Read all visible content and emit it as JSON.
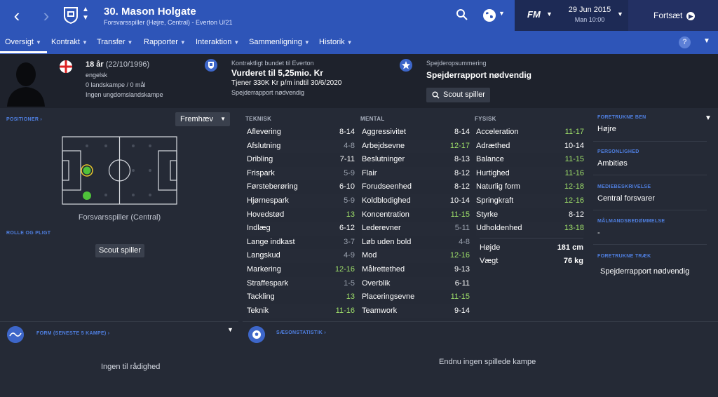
{
  "header": {
    "title": "30. Mason Holgate",
    "subtitle": "Forsvarsspiller (Højre, Central) - Everton U/21",
    "fm_logo": "FM",
    "date": "29 Jun 2015",
    "time": "Man 10:00",
    "continue_label": "Fortsæt"
  },
  "tabs": [
    {
      "label": "Oversigt"
    },
    {
      "label": "Kontrakt"
    },
    {
      "label": "Transfer"
    },
    {
      "label": "Rapporter"
    },
    {
      "label": "Interaktion"
    },
    {
      "label": "Sammenligning"
    },
    {
      "label": "Historik"
    }
  ],
  "help_label": "?",
  "player": {
    "age": "18 år",
    "dob": "(22/10/1996)",
    "nationality": "engelsk",
    "caps": "0 landskampe / 0 mål",
    "youth_caps": "Ingen ungdomslandskampe",
    "contract_label": "Kontraktligt bundet til Everton",
    "value": "Vurderet til 5,25mio. Kr",
    "wage": "Tjener 330K Kr p/m indtil 30/6/2020",
    "contract_note": "Spejderrapport nødvendig",
    "scout_label": "Spejderopsummering",
    "scout_title": "Spejderrapport nødvendig",
    "scout_button": "Scout spiller"
  },
  "positions": {
    "label": "POSITIONER",
    "dropdown": "Fremhæv",
    "position_name": "Forsvarsspiller (Central)",
    "role_label": "ROLLE OG PLIGT",
    "scout_button": "Scout spiller"
  },
  "attributes": {
    "technical_label": "TEKNISK",
    "mental_label": "MENTAL",
    "physical_label": "FYSISK",
    "technical": [
      {
        "name": "Aflevering",
        "value": "8-14",
        "tone": "white"
      },
      {
        "name": "Afslutning",
        "value": "4-8",
        "tone": "grey"
      },
      {
        "name": "Dribling",
        "value": "7-11",
        "tone": "white"
      },
      {
        "name": "Frispark",
        "value": "5-9",
        "tone": "grey"
      },
      {
        "name": "Førsteberøring",
        "value": "6-10",
        "tone": "white"
      },
      {
        "name": "Hjørnespark",
        "value": "5-9",
        "tone": "grey"
      },
      {
        "name": "Hovedstød",
        "value": "13",
        "tone": "green"
      },
      {
        "name": "Indlæg",
        "value": "6-12",
        "tone": "white"
      },
      {
        "name": "Lange indkast",
        "value": "3-7",
        "tone": "grey"
      },
      {
        "name": "Langskud",
        "value": "4-9",
        "tone": "grey"
      },
      {
        "name": "Markering",
        "value": "12-16",
        "tone": "green"
      },
      {
        "name": "Straffespark",
        "value": "1-5",
        "tone": "grey"
      },
      {
        "name": "Tackling",
        "value": "13",
        "tone": "green"
      },
      {
        "name": "Teknik",
        "value": "11-16",
        "tone": "green"
      }
    ],
    "mental": [
      {
        "name": "Aggressivitet",
        "value": "8-14",
        "tone": "white"
      },
      {
        "name": "Arbejdsevne",
        "value": "12-17",
        "tone": "green"
      },
      {
        "name": "Beslutninger",
        "value": "8-13",
        "tone": "white"
      },
      {
        "name": "Flair",
        "value": "8-12",
        "tone": "white"
      },
      {
        "name": "Forudseenhed",
        "value": "8-12",
        "tone": "white"
      },
      {
        "name": "Koldblodighed",
        "value": "10-14",
        "tone": "white"
      },
      {
        "name": "Koncentration",
        "value": "11-15",
        "tone": "green"
      },
      {
        "name": "Lederevner",
        "value": "5-11",
        "tone": "grey"
      },
      {
        "name": "Løb uden bold",
        "value": "4-8",
        "tone": "grey"
      },
      {
        "name": "Mod",
        "value": "12-16",
        "tone": "green"
      },
      {
        "name": "Målrettethed",
        "value": "9-13",
        "tone": "white"
      },
      {
        "name": "Overblik",
        "value": "6-11",
        "tone": "white"
      },
      {
        "name": "Placeringsevne",
        "value": "11-15",
        "tone": "green"
      },
      {
        "name": "Teamwork",
        "value": "9-14",
        "tone": "white"
      }
    ],
    "physical": [
      {
        "name": "Acceleration",
        "value": "11-17",
        "tone": "green"
      },
      {
        "name": "Adræthed",
        "value": "10-14",
        "tone": "white"
      },
      {
        "name": "Balance",
        "value": "11-15",
        "tone": "green"
      },
      {
        "name": "Hurtighed",
        "value": "11-16",
        "tone": "green"
      },
      {
        "name": "Naturlig form",
        "value": "12-18",
        "tone": "green"
      },
      {
        "name": "Springkraft",
        "value": "12-16",
        "tone": "green"
      },
      {
        "name": "Styrke",
        "value": "8-12",
        "tone": "white"
      },
      {
        "name": "Udholdenhed",
        "value": "13-18",
        "tone": "green"
      }
    ],
    "height_label": "Højde",
    "height": "181 cm",
    "weight_label": "Vægt",
    "weight": "76 kg"
  },
  "right_panel": {
    "preferred_foot_label": "FORETRUKNE BEN",
    "preferred_foot": "Højre",
    "personality_label": "PERSONLIGHED",
    "personality": "Ambitiøs",
    "media_label": "MEDIEBESKRIVELSE",
    "media": "Central forsvarer",
    "goalkeeper_label": "MÅLMANDSBEDØMMELSE",
    "goalkeeper": "-",
    "traits_label": "FORETRUKNE TRÆK",
    "traits": "Spejderrapport nødvendig"
  },
  "bottom": {
    "form_label": "FORM (SENESTE 5 KAMPE)",
    "form_empty": "Ingen til rådighed",
    "season_label": "SÆSONSTATISTIK",
    "season_empty": "Endnu ingen spillede kampe"
  },
  "colors": {
    "topbar": "#2e55b8",
    "background": "#252a36",
    "accent_label": "#4f7fe0",
    "green_value": "#9fe06a"
  }
}
